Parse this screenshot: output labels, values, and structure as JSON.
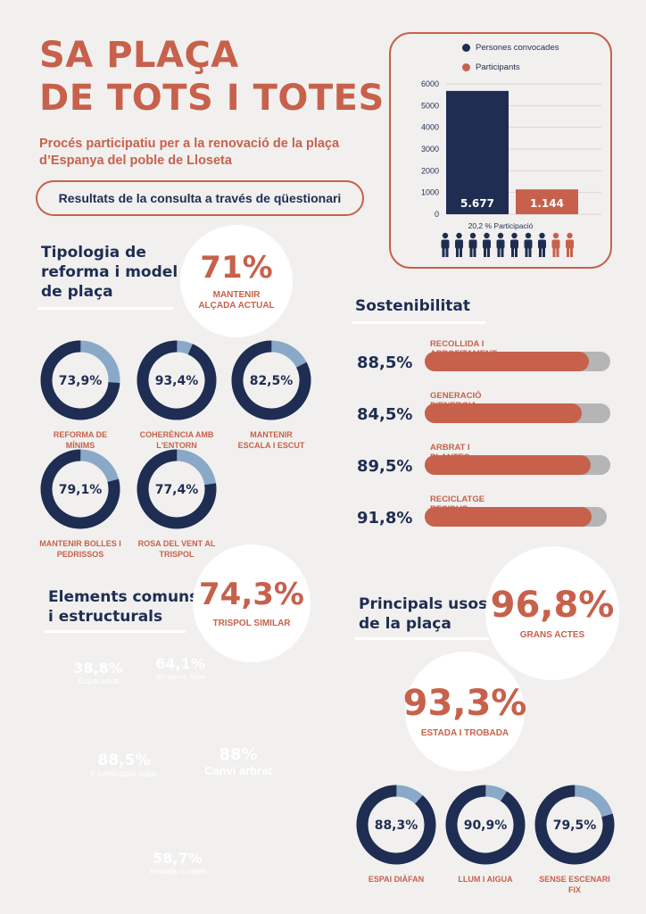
{
  "header": {
    "title_line1": "SA PLAÇA",
    "title_line2": "DE TOTS I TOTES",
    "subtitle": "Procés participatiu per a la renovació de la plaça d’Espanya del poble de Lloseta",
    "results_pill": "Resultats de la consulta a través de qüestionari"
  },
  "chart_data": {
    "type": "bar",
    "categories": [
      "Persones convocades",
      "Participants"
    ],
    "values": [
      5677,
      1144
    ],
    "value_labels": [
      "5.677",
      "1.144"
    ],
    "legend": [
      "Persones convocades",
      "Participants"
    ],
    "legend_placement": "top",
    "ylim": [
      0,
      6000
    ],
    "yticks": [
      "0",
      "1000",
      "2000",
      "3000",
      "4000",
      "5000",
      "6000"
    ],
    "grid": true,
    "colors": [
      "#1f2d52",
      "#c7614b"
    ],
    "annotation": "20,2 % Participació",
    "people_total": 10,
    "people_highlighted": 2
  },
  "tipologia": {
    "title_lines": [
      "Tipologia de",
      "reforma i model",
      "de plaça"
    ],
    "highlight_pct": "71%",
    "highlight_label": "MANTENIR ALÇADA ACTUAL",
    "donuts": [
      {
        "pct": "73,9%",
        "value": 73.9,
        "label_lines": [
          "REFORMA DE",
          "MÍNIMS"
        ]
      },
      {
        "pct": "93,4%",
        "value": 93.4,
        "label_lines": [
          "COHERÈNCIA AMB",
          "L'ENTORN"
        ]
      },
      {
        "pct": "82,5%",
        "value": 82.5,
        "label_lines": [
          "MANTENIR",
          "ESCALA I ESCUT"
        ]
      },
      {
        "pct": "79,1%",
        "value": 79.1,
        "label_lines": [
          "MANTENIR BOLLES I",
          "PEDRISSOS"
        ]
      },
      {
        "pct": "77,4%",
        "value": 77.4,
        "label_lines": [
          "ROSA DEL VENT AL",
          "TRISPOL"
        ]
      }
    ]
  },
  "sostenibilitat": {
    "title": "Sostenibilitat",
    "items": [
      {
        "pct": "88,5%",
        "value": 88.5,
        "label": "RECOLLIDA I APROFITAMENT DE L'AIGUA"
      },
      {
        "pct": "84,5%",
        "value": 84.5,
        "label": "GENERACIÓ D'ENERGIA SOLAR"
      },
      {
        "pct": "89,5%",
        "value": 89.5,
        "label": "ARBRAT I PLANTES AUTÒCTONES"
      },
      {
        "pct": "91,8%",
        "value": 91.8,
        "label": "RECICLATGE RESIDUS OBRES"
      }
    ]
  },
  "elements": {
    "title_lines": [
      "Elements comuns",
      "i estructurals"
    ],
    "highlight_pct": "74,3%",
    "highlight_label": "TRISPOL SIMILAR",
    "bubbles": [
      {
        "pct": "38,8%",
        "label": "Espai verd",
        "color": "#d59284"
      },
      {
        "pct": "64,1%",
        "label": "No banys fixos",
        "color": "#cd7d6c"
      },
      {
        "pct": "88,5%",
        "label": "Il·luminació solar",
        "color": "#cf8373"
      },
      {
        "pct": "88%",
        "label": "Canvi arbrat",
        "color": "#c0513c"
      },
      {
        "pct": "58,7%",
        "label": "Tendals o veles",
        "color": "#dc7560"
      }
    ]
  },
  "usos": {
    "title_lines": [
      "Principals usos",
      "de la plaça"
    ],
    "highlight1_pct": "96,8%",
    "highlight1_label": "GRANS ACTES",
    "highlight2_pct": "93,3%",
    "highlight2_label": "ESTADA I TROBADA",
    "donuts": [
      {
        "pct": "88,3%",
        "value": 88.3,
        "label": "ESPAI DIÀFAN"
      },
      {
        "pct": "90,9%",
        "value": 90.9,
        "label": "LLUM I AIGUA"
      },
      {
        "pct": "79,5%",
        "value": 79.5,
        "label": "SENSE ESCENARI FIX"
      }
    ]
  },
  "colors": {
    "navy": "#1f2d52",
    "terracotta": "#c7614b",
    "light_blue": "#8aa9c8",
    "bar_track": "#b5b5b5"
  }
}
